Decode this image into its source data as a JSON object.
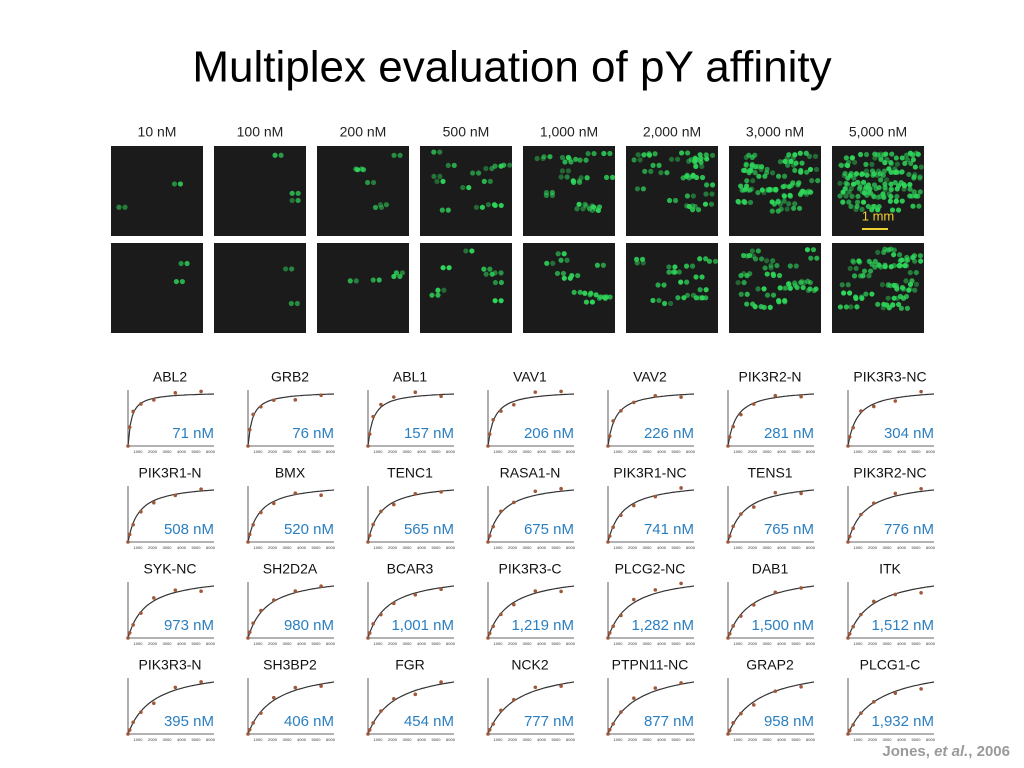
{
  "title": "Multiplex evaluation of pY affinity",
  "concentrations": [
    "10 nM",
    "100 nM",
    "200 nM",
    "500 nM",
    "1,000 nM",
    "2,000 nM",
    "3,000 nM",
    "5,000 nM"
  ],
  "scale_label": "1 mm",
  "panel_xticks": [
    "1000",
    "2000",
    "3000",
    "4000",
    "5000",
    "6000"
  ],
  "panels": [
    {
      "name": "ABL2",
      "kd": "71 nM"
    },
    {
      "name": "GRB2",
      "kd": "76 nM"
    },
    {
      "name": "ABL1",
      "kd": "157 nM"
    },
    {
      "name": "VAV1",
      "kd": "206 nM"
    },
    {
      "name": "VAV2",
      "kd": "226 nM"
    },
    {
      "name": "PIK3R2-N",
      "kd": "281 nM"
    },
    {
      "name": "PIK3R3-NC",
      "kd": "304 nM"
    },
    {
      "name": "PIK3R1-N",
      "kd": "508 nM"
    },
    {
      "name": "BMX",
      "kd": "520 nM"
    },
    {
      "name": "TENC1",
      "kd": "565 nM"
    },
    {
      "name": "RASA1-N",
      "kd": "675 nM"
    },
    {
      "name": "PIK3R1-NC",
      "kd": "741 nM"
    },
    {
      "name": "TENS1",
      "kd": "765 nM"
    },
    {
      "name": "PIK3R2-NC",
      "kd": "776 nM"
    },
    {
      "name": "SYK-NC",
      "kd": "973 nM"
    },
    {
      "name": "SH2D2A",
      "kd": "980 nM"
    },
    {
      "name": "BCAR3",
      "kd": "1,001 nM"
    },
    {
      "name": "PIK3R3-C",
      "kd": "1,219 nM"
    },
    {
      "name": "PLCG2-NC",
      "kd": "1,282 nM"
    },
    {
      "name": "DAB1",
      "kd": "1,500 nM"
    },
    {
      "name": "ITK",
      "kd": "1,512 nM"
    },
    {
      "name": "PIK3R3-N",
      "kd": "395 nM"
    },
    {
      "name": "SH3BP2",
      "kd": "406 nM"
    },
    {
      "name": "FGR",
      "kd": "454 nM"
    },
    {
      "name": "NCK2",
      "kd": "777 nM"
    },
    {
      "name": "PTPN11-NC",
      "kd": "877 nM"
    },
    {
      "name": "GRAP2",
      "kd": "958 nM"
    },
    {
      "name": "PLCG1-C",
      "kd": "1,932 nM"
    }
  ],
  "citation": {
    "author": "Jones, ",
    "etal": "et al.",
    "year": ", 2006"
  }
}
